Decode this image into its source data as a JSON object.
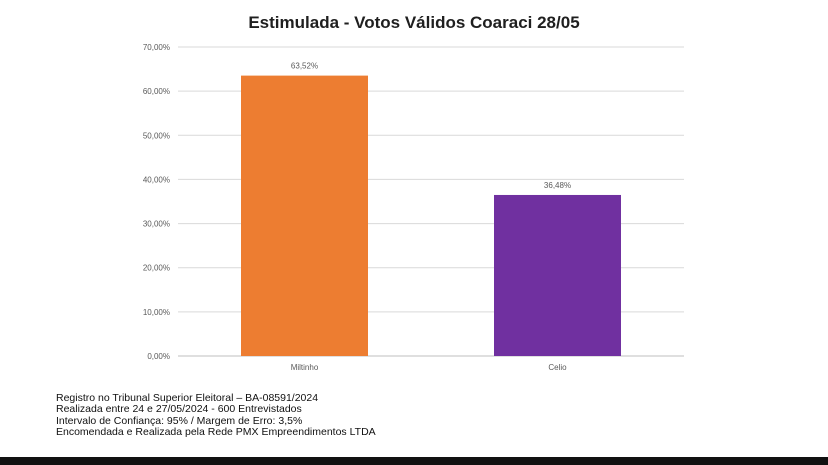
{
  "chart_data": {
    "type": "bar",
    "title": "Estimulada - Votos Válidos Coaraci 28/05",
    "categories": [
      "Miltinho",
      "Celio"
    ],
    "values": [
      63.52,
      36.48
    ],
    "data_labels": [
      "63,52%",
      "36,48%"
    ],
    "colors": [
      "#ed7d31",
      "#7030a0"
    ],
    "ylim": [
      0,
      70
    ],
    "yticks": [
      0,
      10,
      20,
      30,
      40,
      50,
      60,
      70
    ],
    "ytick_labels": [
      "0,00%",
      "10,00%",
      "20,00%",
      "30,00%",
      "40,00%",
      "50,00%",
      "60,00%",
      "70,00%"
    ],
    "xlabel": "",
    "ylabel": "",
    "grid": true,
    "legend": "none"
  },
  "footnotes": [
    "Registro no Tribunal Superior Eleitoral – BA-08591/2024",
    "Realizada entre 24 e 27/05/2024 - 600 Entrevistados",
    "Intervalo de Confiança: 95% / Margem de Erro: 3,5%",
    "Encomendada e Realizada pela Rede PMX Empreendimentos LTDA"
  ]
}
